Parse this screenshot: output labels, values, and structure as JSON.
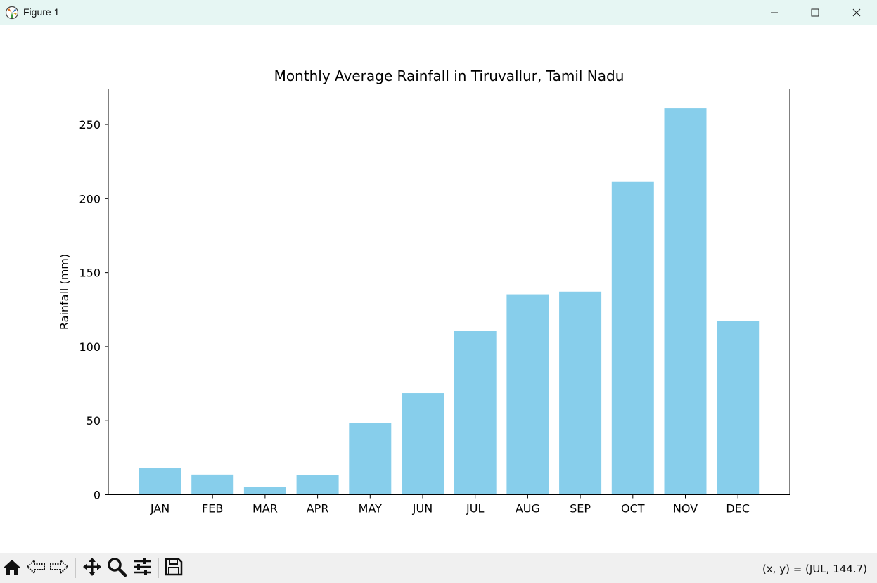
{
  "window": {
    "title": "Figure 1",
    "icons": {
      "app": "matplotlib-icon",
      "minimize": "minimize-icon",
      "maximize": "maximize-icon",
      "close": "close-icon"
    }
  },
  "toolbar": {
    "icons": [
      "home-icon",
      "back-arrow-icon",
      "forward-arrow-icon",
      "pan-move-icon",
      "zoom-magnifier-icon",
      "configure-subplots-icon",
      "save-floppy-icon"
    ],
    "coords": "(x, y) = (JUL, 144.7)"
  },
  "chart_data": {
    "type": "bar",
    "title": "Monthly Average Rainfall in Tiruvallur, Tamil Nadu",
    "xlabel": "",
    "ylabel": "Rainfall (mm)",
    "categories": [
      "JAN",
      "FEB",
      "MAR",
      "APR",
      "MAY",
      "JUN",
      "JUL",
      "AUG",
      "SEP",
      "OCT",
      "NOV",
      "DEC"
    ],
    "values": [
      17.8,
      13.6,
      5.0,
      13.5,
      48.2,
      68.6,
      110.6,
      135.3,
      137.1,
      211.2,
      260.9,
      117.1
    ],
    "yticks": [
      0,
      50,
      100,
      150,
      200,
      250
    ],
    "ylim": [
      0,
      274
    ],
    "grid": false,
    "legend": false,
    "bar_color": "#87ceeb"
  }
}
